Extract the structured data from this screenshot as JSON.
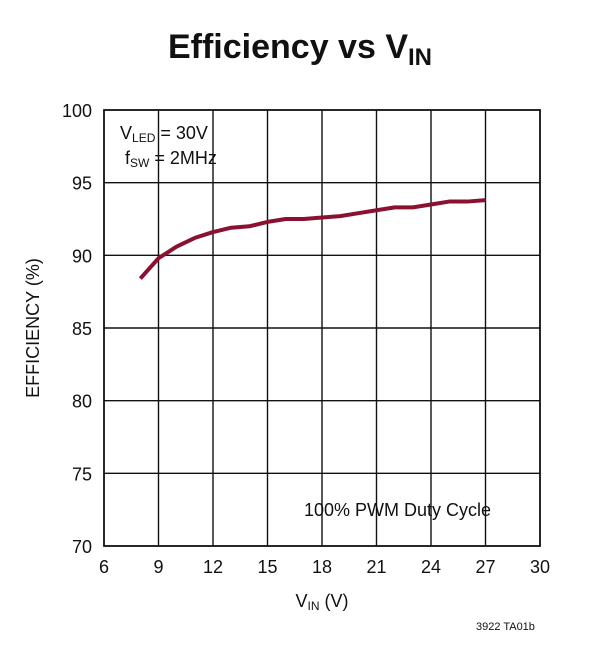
{
  "chart_data": {
    "type": "line",
    "title": {
      "main": "Efficiency vs V",
      "subscript": "IN"
    },
    "xlabel": {
      "main": "V",
      "subscript": "IN",
      "suffix": " (V)"
    },
    "ylabel": "EFFICIENCY (%)",
    "xlim": [
      6,
      30
    ],
    "ylim": [
      70,
      100
    ],
    "xticks": [
      6,
      9,
      12,
      15,
      18,
      21,
      24,
      27,
      30
    ],
    "yticks": [
      70,
      75,
      80,
      85,
      90,
      95,
      100
    ],
    "grid": true,
    "annotations": {
      "condition1": {
        "prefix": "V",
        "subscript": "LED",
        "suffix": " = 30V"
      },
      "condition2": {
        "prefix": "f",
        "subscript": "SW",
        "suffix": " = 2MHz"
      },
      "mode": "100% PWM Duty Cycle",
      "footer": "3922 TA01b"
    },
    "series": [
      {
        "name": "Efficiency",
        "color": "#8a1230",
        "x": [
          8,
          9,
          10,
          11,
          12,
          13,
          14,
          15,
          16,
          17,
          18,
          19,
          20,
          21,
          22,
          23,
          24,
          25,
          26,
          27
        ],
        "y": [
          88.4,
          89.8,
          90.6,
          91.2,
          91.6,
          91.9,
          92.0,
          92.3,
          92.5,
          92.5,
          92.6,
          92.7,
          92.9,
          93.1,
          93.3,
          93.3,
          93.5,
          93.7,
          93.7,
          93.8
        ]
      }
    ]
  }
}
